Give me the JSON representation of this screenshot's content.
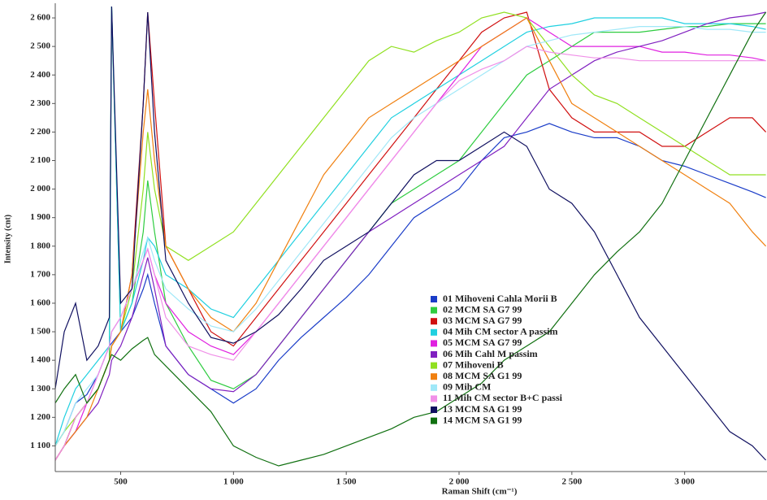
{
  "chart_data": {
    "type": "line",
    "x_label": "Raman Shift (cm⁻¹)",
    "y_label": "Intensity (cnt)",
    "xlim": [
      210,
      3365
    ],
    "ylim": [
      1010,
      2640
    ],
    "xticks": [
      500,
      {
        "value": 1000,
        "label": "1 000"
      },
      {
        "value": 1500,
        "label": "1 500"
      },
      {
        "value": 2000,
        "label": "2 000"
      },
      {
        "value": 2500,
        "label": "2 500"
      },
      {
        "value": 3000,
        "label": "3 000"
      }
    ],
    "yticks": [
      {
        "value": 1100,
        "label": "1 100"
      },
      {
        "value": 1200,
        "label": "1 200"
      },
      {
        "value": 1300,
        "label": "1 300"
      },
      {
        "value": 1400,
        "label": "1 400"
      },
      {
        "value": 1500,
        "label": "1 500"
      },
      {
        "value": 1600,
        "label": "1 600"
      },
      {
        "value": 1700,
        "label": "1 700"
      },
      {
        "value": 1800,
        "label": "1 800"
      },
      {
        "value": 1900,
        "label": "1 900"
      },
      {
        "value": 2000,
        "label": "2 000"
      },
      {
        "value": 2100,
        "label": "2 100"
      },
      {
        "value": 2200,
        "label": "2 200"
      },
      {
        "value": 2300,
        "label": "2 300"
      },
      {
        "value": 2400,
        "label": "2 400"
      },
      {
        "value": 2500,
        "label": "2 500"
      },
      {
        "value": 2600,
        "label": "2 600"
      }
    ],
    "grid": false,
    "x": [
      210,
      250,
      300,
      350,
      400,
      450,
      460,
      500,
      550,
      600,
      620,
      650,
      700,
      800,
      900,
      1000,
      1100,
      1200,
      1300,
      1400,
      1500,
      1600,
      1700,
      1800,
      1900,
      2000,
      2100,
      2200,
      2300,
      2400,
      2500,
      2600,
      2700,
      2800,
      2900,
      3000,
      3100,
      3200,
      3300,
      3360
    ],
    "series": [
      {
        "name": "01 Mihoveni Cahla Morii B",
        "color": "#1a3cc8",
        "values": [
          1100,
          1150,
          1250,
          1280,
          1350,
          1450,
          1460,
          1500,
          1550,
          1650,
          1700,
          1600,
          1450,
          1350,
          1300,
          1250,
          1300,
          1400,
          1480,
          1550,
          1620,
          1700,
          1800,
          1900,
          1950,
          2000,
          2100,
          2180,
          2200,
          2230,
          2200,
          2180,
          2180,
          2150,
          2100,
          2080,
          2050,
          2020,
          1990,
          1970
        ]
      },
      {
        "name": "02  MCM SA G7 99",
        "color": "#2ecc40",
        "values": [
          1050,
          1100,
          1200,
          1250,
          1300,
          1400,
          2640,
          1500,
          1600,
          1850,
          2030,
          1850,
          1600,
          1450,
          1330,
          1300,
          1350,
          1450,
          1550,
          1650,
          1750,
          1850,
          1950,
          2000,
          2050,
          2100,
          2200,
          2300,
          2400,
          2450,
          2500,
          2550,
          2550,
          2550,
          2560,
          2570,
          2570,
          2580,
          2580,
          2580
        ]
      },
      {
        "name": "03 MCM SA G7 99",
        "color": "#d01010",
        "values": [
          1050,
          1100,
          1200,
          1250,
          1300,
          1400,
          1450,
          1500,
          1700,
          2300,
          2620,
          2300,
          1800,
          1650,
          1500,
          1450,
          1550,
          1650,
          1750,
          1850,
          1950,
          2050,
          2150,
          2250,
          2350,
          2450,
          2550,
          2600,
          2620,
          2350,
          2250,
          2200,
          2200,
          2200,
          2150,
          2150,
          2200,
          2250,
          2250,
          2200
        ]
      },
      {
        "name": "04 Mih CM sector A passim",
        "color": "#20d0e0",
        "values": [
          1100,
          1200,
          1300,
          1350,
          1400,
          1450,
          2640,
          1500,
          1600,
          1750,
          1830,
          1800,
          1700,
          1650,
          1580,
          1550,
          1650,
          1750,
          1850,
          1950,
          2050,
          2150,
          2250,
          2300,
          2350,
          2400,
          2450,
          2500,
          2550,
          2570,
          2580,
          2600,
          2600,
          2600,
          2600,
          2580,
          2580,
          2580,
          2570,
          2560
        ]
      },
      {
        "name": "05 MCM SA G7 99",
        "color": "#e020e0",
        "values": [
          1050,
          1100,
          1150,
          1250,
          1350,
          1450,
          1500,
          1550,
          1650,
          1750,
          1790,
          1700,
          1600,
          1500,
          1450,
          1420,
          1500,
          1600,
          1700,
          1800,
          1900,
          2000,
          2100,
          2200,
          2300,
          2400,
          2500,
          2550,
          2600,
          2550,
          2500,
          2500,
          2500,
          2500,
          2480,
          2480,
          2470,
          2470,
          2460,
          2450
        ]
      },
      {
        "name": "06 Mih Cahl M passim",
        "color": "#8020c0",
        "values": [
          1050,
          1100,
          1150,
          1200,
          1250,
          1350,
          1400,
          1450,
          1550,
          1700,
          1760,
          1650,
          1450,
          1350,
          1300,
          1290,
          1350,
          1450,
          1550,
          1650,
          1750,
          1850,
          1900,
          1950,
          2000,
          2050,
          2100,
          2150,
          2250,
          2350,
          2400,
          2450,
          2480,
          2500,
          2520,
          2550,
          2580,
          2600,
          2610,
          2620
        ]
      },
      {
        "name": "07 Mihoveni B",
        "color": "#90e020",
        "values": [
          1100,
          1150,
          1200,
          1250,
          1300,
          1400,
          1450,
          1500,
          1650,
          2000,
          2200,
          2000,
          1800,
          1750,
          1800,
          1850,
          1950,
          2050,
          2150,
          2250,
          2350,
          2450,
          2500,
          2480,
          2520,
          2550,
          2600,
          2620,
          2600,
          2500,
          2400,
          2330,
          2300,
          2250,
          2200,
          2150,
          2100,
          2050,
          2050,
          2050
        ]
      },
      {
        "name": "08 MCM SA G1 99",
        "color": "#f08010",
        "values": [
          1050,
          1100,
          1150,
          1200,
          1300,
          1400,
          1450,
          1500,
          1700,
          2200,
          2350,
          2100,
          1800,
          1650,
          1550,
          1500,
          1600,
          1750,
          1900,
          2050,
          2150,
          2250,
          2300,
          2350,
          2400,
          2450,
          2500,
          2550,
          2600,
          2450,
          2300,
          2250,
          2200,
          2150,
          2100,
          2050,
          2000,
          1950,
          1850,
          1800
        ]
      },
      {
        "name": "09 Mih CM",
        "color": "#a0e8f8",
        "values": [
          1100,
          1150,
          1250,
          1300,
          1350,
          1450,
          1500,
          1550,
          1650,
          1780,
          1830,
          1750,
          1650,
          1580,
          1520,
          1500,
          1580,
          1680,
          1780,
          1880,
          1980,
          2080,
          2180,
          2250,
          2300,
          2350,
          2400,
          2450,
          2500,
          2520,
          2540,
          2550,
          2560,
          2570,
          2570,
          2570,
          2560,
          2560,
          2550,
          2550
        ]
      },
      {
        "name": "11 Mih CM sector B+C passi",
        "color": "#f090e8",
        "values": [
          1050,
          1100,
          1200,
          1250,
          1350,
          1450,
          1500,
          1550,
          1650,
          1750,
          1790,
          1700,
          1550,
          1450,
          1420,
          1400,
          1500,
          1600,
          1700,
          1800,
          1900,
          2000,
          2100,
          2200,
          2300,
          2380,
          2420,
          2450,
          2500,
          2480,
          2470,
          2460,
          2460,
          2450,
          2450,
          2450,
          2450,
          2450,
          2450,
          2450
        ]
      },
      {
        "name": "13 MCM SA G1 99",
        "color": "#101060",
        "values": [
          1300,
          1500,
          1600,
          1400,
          1450,
          1550,
          2640,
          1600,
          1650,
          2300,
          2620,
          2200,
          1750,
          1600,
          1480,
          1460,
          1500,
          1560,
          1650,
          1750,
          1800,
          1850,
          1950,
          2050,
          2100,
          2100,
          2150,
          2200,
          2150,
          2000,
          1950,
          1850,
          1700,
          1550,
          1450,
          1350,
          1250,
          1150,
          1100,
          1050
        ]
      },
      {
        "name": "14 MCM SA G1 99",
        "color": "#107010",
        "values": [
          1250,
          1300,
          1350,
          1250,
          1300,
          1400,
          1420,
          1400,
          1440,
          1470,
          1480,
          1420,
          1380,
          1300,
          1220,
          1100,
          1060,
          1030,
          1050,
          1070,
          1100,
          1130,
          1160,
          1200,
          1220,
          1270,
          1320,
          1400,
          1450,
          1500,
          1600,
          1700,
          1780,
          1850,
          1950,
          2100,
          2250,
          2400,
          2550,
          2620
        ]
      }
    ]
  }
}
